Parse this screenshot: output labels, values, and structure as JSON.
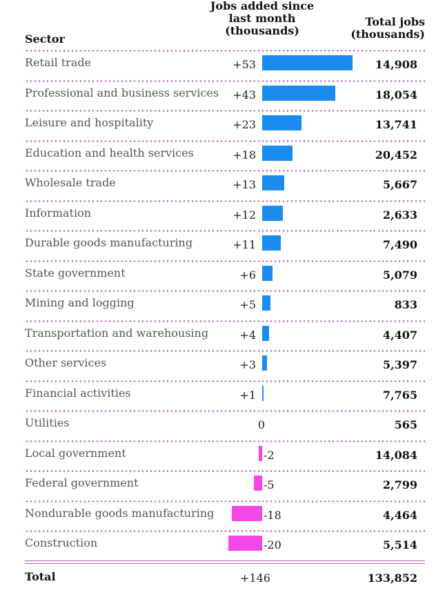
{
  "chart_data": {
    "type": "bar",
    "orientation": "horizontal",
    "headers": {
      "sector": "Sector",
      "change": "Jobs added since\nlast month\n(thousands)",
      "total": "Total jobs\n(thousands)"
    },
    "rows": [
      {
        "sector": "Retail trade",
        "change": 53,
        "change_label": "+53",
        "total": "14,908"
      },
      {
        "sector": "Professional and business services",
        "change": 43,
        "change_label": "+43",
        "total": "18,054"
      },
      {
        "sector": "Leisure and hospitality",
        "change": 23,
        "change_label": "+23",
        "total": "13,741"
      },
      {
        "sector": "Education and health services",
        "change": 18,
        "change_label": "+18",
        "total": "20,452"
      },
      {
        "sector": "Wholesale trade",
        "change": 13,
        "change_label": "+13",
        "total": "5,667"
      },
      {
        "sector": "Information",
        "change": 12,
        "change_label": "+12",
        "total": "2,633"
      },
      {
        "sector": "Durable goods manufacturing",
        "change": 11,
        "change_label": "+11",
        "total": "7,490"
      },
      {
        "sector": "State government",
        "change": 6,
        "change_label": "+6",
        "total": "5,079"
      },
      {
        "sector": "Mining and logging",
        "change": 5,
        "change_label": "+5",
        "total": "833"
      },
      {
        "sector": "Transportation and warehousing",
        "change": 4,
        "change_label": "+4",
        "total": "4,407"
      },
      {
        "sector": "Other services",
        "change": 3,
        "change_label": "+3",
        "total": "5,397"
      },
      {
        "sector": "Financial activities",
        "change": 1,
        "change_label": "+1",
        "total": "7,765"
      },
      {
        "sector": "Utilities",
        "change": 0,
        "change_label": "0",
        "total": "565"
      },
      {
        "sector": "Local government",
        "change": -2,
        "change_label": "-2",
        "total": "14,084"
      },
      {
        "sector": "Federal government",
        "change": -5,
        "change_label": "-5",
        "total": "2,799"
      },
      {
        "sector": "Nondurable goods manufacturing",
        "change": -18,
        "change_label": "-18",
        "total": "4,464"
      },
      {
        "sector": "Construction",
        "change": -20,
        "change_label": "-20",
        "total": "5,514"
      }
    ],
    "total": {
      "label": "Total",
      "change_label": "+146",
      "value": "133,852"
    },
    "colors": {
      "positive": "#1a8cf0",
      "negative": "#f447e8",
      "divider": "#b660b8"
    }
  }
}
